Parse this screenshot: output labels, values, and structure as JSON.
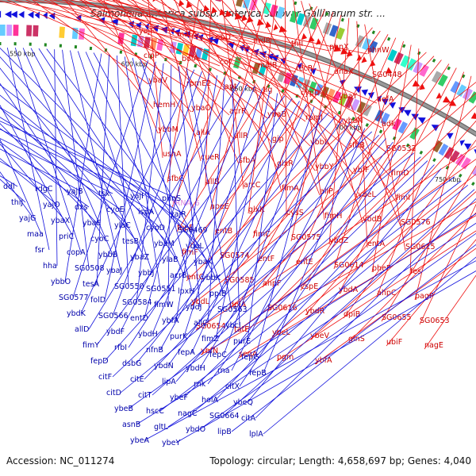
{
  "title": "Salmonella enterica subsp. enterica serovar Gallinarum str. ...",
  "footer": {
    "accession": "Accession: NC_011274",
    "summary": "Topology: circular; Length: 4,658,697 bp; Genes: 4,040"
  },
  "colors": {
    "forward": "#ee1111",
    "reverse": "#1111dd",
    "backbone": "#999999",
    "rna": "#dd88dd",
    "marker": "#228822"
  },
  "ticks": [
    "450 kbp",
    "500 kbp",
    "550 kbp",
    "600 kbp",
    "650 kbp",
    "700 kbp",
    "750 kbp",
    "800 kbp"
  ],
  "forward_labels": [
    "yajF",
    "malZ",
    "ribD",
    "nrdR",
    "thiI",
    "phnX",
    "phnW",
    "clpP",
    "bolA",
    "cof",
    "mdlB",
    "recR",
    "dnaX",
    "SG0448",
    "ybaV",
    "rpmE2",
    "apt",
    "tig",
    "cypD",
    "ybaY",
    "aefA",
    "hemH",
    "ybaO",
    "acrR",
    "ybaB",
    "rpmJ",
    "ybaN",
    "adk",
    "ybbM",
    "allA",
    "allR",
    "gip",
    "ybbL",
    "sfbB",
    "SG0532",
    "ushA",
    "cueR",
    "sfbA",
    "glxR",
    "ybbY",
    "ybfF",
    "fimD",
    "sfbC",
    "allB",
    "arcC",
    "fimA",
    "allP",
    "ybeL",
    "fimI",
    "tRNA_6",
    "apeE",
    "glxK",
    "cysS",
    "fimH",
    "ybdB",
    "SG0576",
    "fepE",
    "entB",
    "fimC",
    "SG0575",
    "ybdZ",
    "entA",
    "SG0615",
    "fimF",
    "SG0574",
    "entF",
    "entE",
    "SG0614",
    "pheP",
    "fes",
    "entC",
    "SG0585",
    "ahpF",
    "cspE",
    "ybdA",
    "ahpC",
    "pagP",
    "ybdL",
    "dpiA",
    "SG0616",
    "ybdR",
    "dpiB",
    "SG0655",
    "SG0653",
    "SG0654",
    "tatE",
    "ybeL",
    "ybeV",
    "glnS",
    "ubiF",
    "nagE",
    "ybfN",
    "seqA",
    "pgm",
    "ybfA"
  ],
  "reverse_labels": [
    "ddl",
    "rdgC",
    "yajB",
    "tsx",
    "yajI",
    "phnS",
    "thiJ",
    "yajO",
    "dxs",
    "cyoE",
    "ispA",
    "yajR",
    "yajG",
    "ybaX",
    "ybaE",
    "ylaC",
    "cyoD",
    "SG0469",
    "maa",
    "priC",
    "cyoC",
    "tesB",
    "ybaM",
    "ybaL",
    "fsr",
    "copA",
    "ybbB",
    "ybaZ",
    "ylaB",
    "ybaK",
    "hha",
    "SG0508",
    "ybaJ",
    "ybbJ",
    "acrB",
    "ybbK",
    "ybbO",
    "tesA",
    "SG0550",
    "SG0551",
    "lpxH",
    "ppiB",
    "SG0577",
    "folD",
    "SG0584",
    "fimW",
    "ybdJ",
    "SG0563",
    "ybdK",
    "SG0566",
    "entD",
    "ybfA",
    "allC",
    "ybcI",
    "allD",
    "ybdF",
    "ybdH",
    "purK",
    "fimZ",
    "purE",
    "fimY",
    "rfbI",
    "nfnB",
    "fepA",
    "fepC",
    "fepG",
    "fepD",
    "dsbG",
    "ybdN",
    "ybdH",
    "rna",
    "fepB",
    "citF",
    "citE",
    "lipA",
    "rnk",
    "citX",
    "ybdM",
    "citD",
    "citT",
    "ybeF",
    "holA",
    "ybeQ",
    "lnt",
    "ybeB",
    "hscC",
    "nagC",
    "SG0664",
    "citA",
    "rihA",
    "asnB",
    "gltL",
    "ybdO",
    "lipB",
    "lplA",
    "citC",
    "ybeA",
    "ybeY"
  ]
}
